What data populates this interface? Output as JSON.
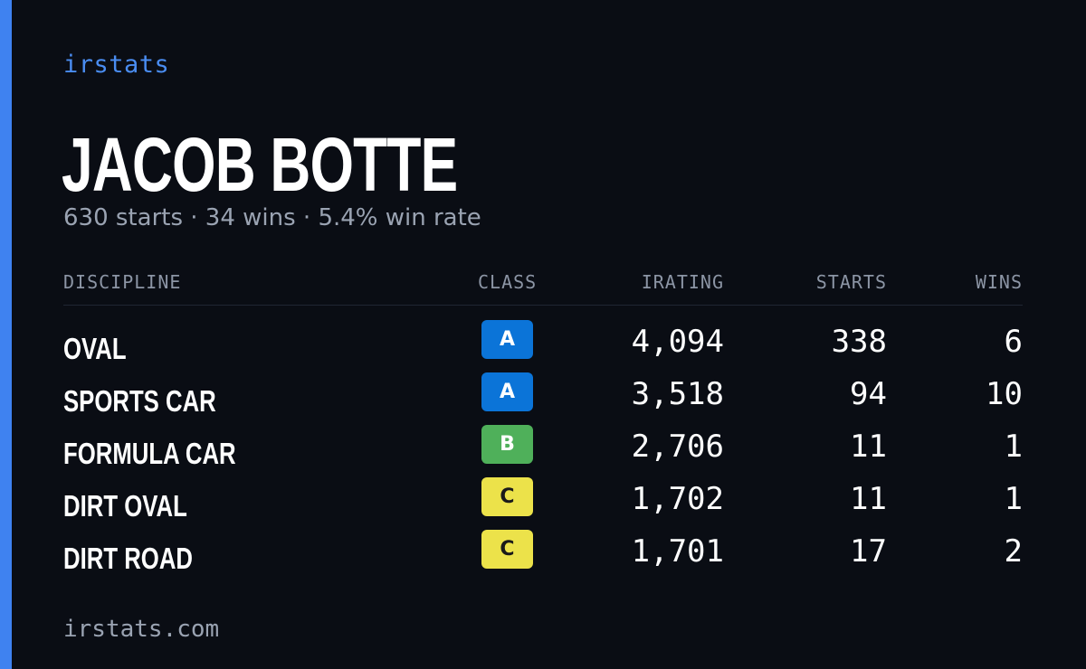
{
  "brand": "irstats",
  "driver": {
    "name": "JACOB BOTTE",
    "summary": "630 starts · 34 wins · 5.4% win rate"
  },
  "table": {
    "headers": {
      "discipline": "DISCIPLINE",
      "class": "CLASS",
      "irating": "IRATING",
      "starts": "STARTS",
      "wins": "WINS"
    },
    "rows": [
      {
        "discipline": "OVAL",
        "class": "A",
        "irating": "4,094",
        "starts": "338",
        "wins": "6"
      },
      {
        "discipline": "SPORTS CAR",
        "class": "A",
        "irating": "3,518",
        "starts": "94",
        "wins": "10"
      },
      {
        "discipline": "FORMULA CAR",
        "class": "B",
        "irating": "2,706",
        "starts": "11",
        "wins": "1"
      },
      {
        "discipline": "DIRT OVAL",
        "class": "C",
        "irating": "1,702",
        "starts": "11",
        "wins": "1"
      },
      {
        "discipline": "DIRT ROAD",
        "class": "C",
        "irating": "1,701",
        "starts": "17",
        "wins": "2"
      }
    ]
  },
  "class_colors": {
    "A": {
      "bg": "#0b74d8",
      "fg": "#ffffff"
    },
    "B": {
      "bg": "#4fb05a",
      "fg": "#ffffff"
    },
    "C": {
      "bg": "#ece24a",
      "fg": "#1a1a1a"
    }
  },
  "accent_color": "#3f82f0",
  "footer": "irstats.com"
}
